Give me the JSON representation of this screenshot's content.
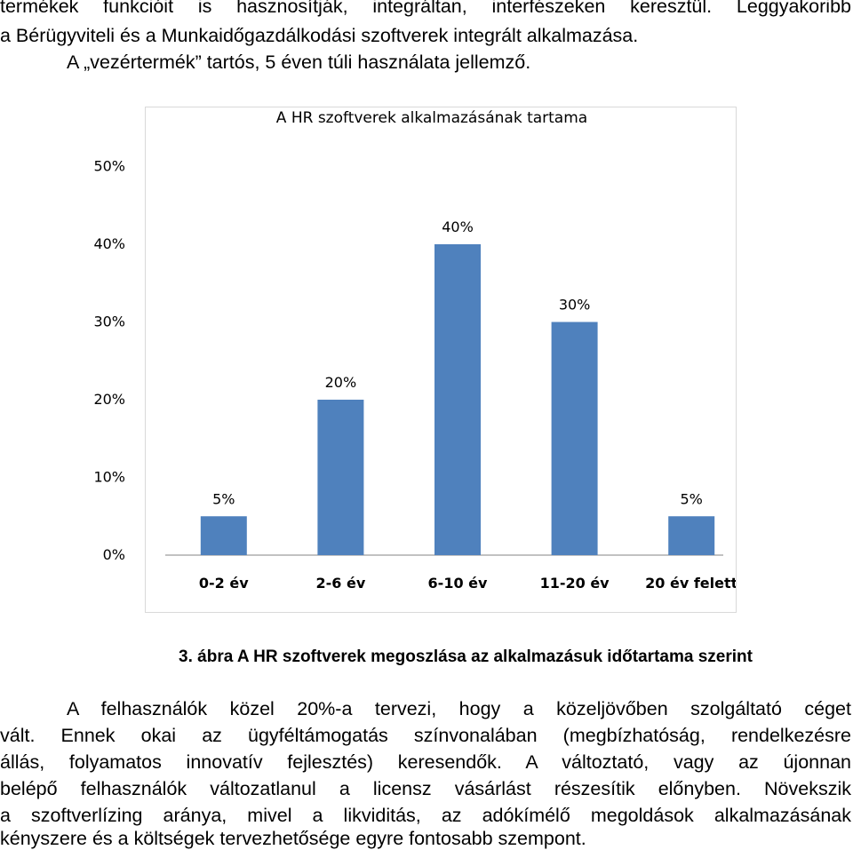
{
  "intro": {
    "line1": "termékek funkcióit is hasznosítják, integráltan, interfészeken keresztül. Leggyakoribb",
    "line2": "a Bérügyviteli és a Munkaidőgazdálkodási szoftverek integrált alkalmazása.",
    "line3": "A „vezértermék” tartós, 5 éven túli használata jellemző."
  },
  "chart_data": {
    "type": "bar",
    "title": "A HR szoftverek alkalmazásának tartama",
    "categories": [
      "0-2 év",
      "2-6 év",
      "6-10 év",
      "11-20 év",
      "20 év felett"
    ],
    "values": [
      5,
      20,
      40,
      30,
      5
    ],
    "data_labels": [
      "5%",
      "20%",
      "40%",
      "30%",
      "5%"
    ],
    "y_ticks": [
      "0%",
      "10%",
      "20%",
      "30%",
      "40%",
      "50%"
    ],
    "ylim": [
      0,
      50
    ],
    "grid": false,
    "bar_color": "#4f81bd",
    "xlabel": "",
    "ylabel": ""
  },
  "caption": "3. ábra A HR szoftverek megoszlása az alkalmazásuk időtartama szerint",
  "paragraph": {
    "line1": "A felhasználók közel 20%-a tervezi, hogy a közeljövőben szolgáltató céget",
    "line2": "vált. Ennek okai az ügyféltámogatás színvonalában (megbízhatóság, rendelkezésre",
    "line3": "állás, folyamatos innovatív fejlesztés) keresendők. A változtató, vagy az újonnan",
    "line4": "belépő felhasználók változatlanul a licensz vásárlást részesítik előnyben. Növekszik",
    "line5": "a szoftverlízing aránya, mivel a likviditás, az adókímélő megoldások alkalmazásának",
    "line6": "kényszere és a költségek tervezhetősége egyre fontosabb szempont."
  }
}
